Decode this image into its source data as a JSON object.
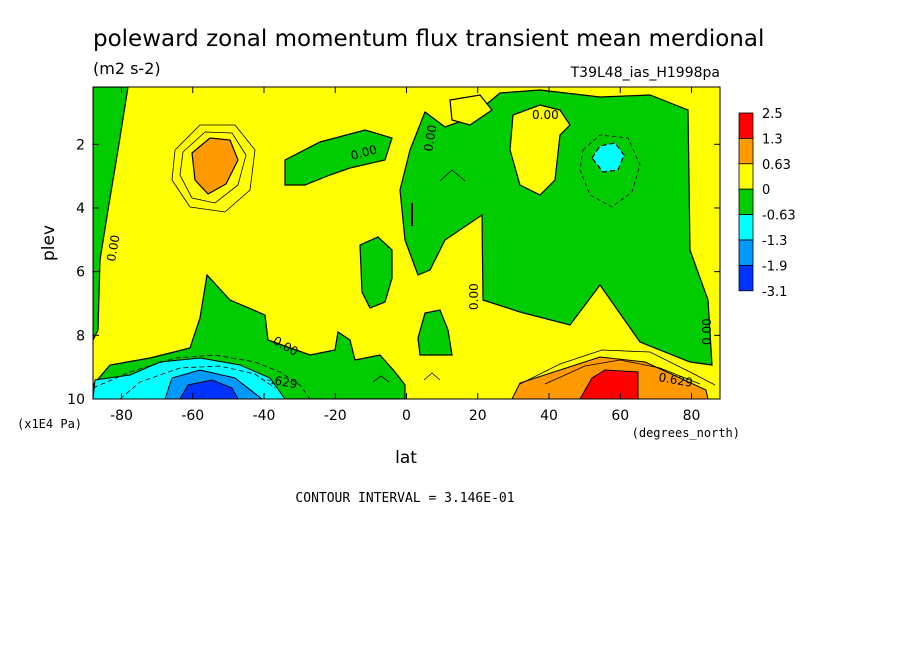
{
  "chart_data": {
    "type": "heatmap",
    "title": "poleward zonal momentum flux transient mean merdional",
    "units": "(m2 s-2)",
    "run_label": "T39L48_ias_H1998pa",
    "xlabel": "lat",
    "x_units": "(degrees_north)",
    "ylabel": "plev",
    "y_units": "(x1E4 Pa)",
    "xlim": [
      -88,
      88
    ],
    "ylim": [
      10,
      0.2
    ],
    "x_ticks": [
      "-80",
      "-60",
      "-40",
      "-20",
      "0",
      "20",
      "40",
      "60",
      "80"
    ],
    "y_ticks": [
      "2",
      "4",
      "6",
      "8",
      "10"
    ],
    "contour_interval": "CONTOUR INTERVAL = 3.146E-01",
    "contour_labels": [
      "0.00",
      "0.00",
      "0.00",
      "0.00",
      "0.00",
      "0.00",
      "0.00",
      "-.629",
      "0.629"
    ],
    "colorbar": {
      "labels": [
        "2.5",
        "1.3",
        "0.63",
        "0",
        "-0.63",
        "-1.3",
        "-1.9",
        "-3.1"
      ],
      "colors": [
        "#ff0000",
        "#ff9900",
        "#ffff00",
        "#00cc00",
        "#00ffff",
        "#0099ff",
        "#0033ff"
      ]
    },
    "legend_placement": "right",
    "grid": false
  }
}
